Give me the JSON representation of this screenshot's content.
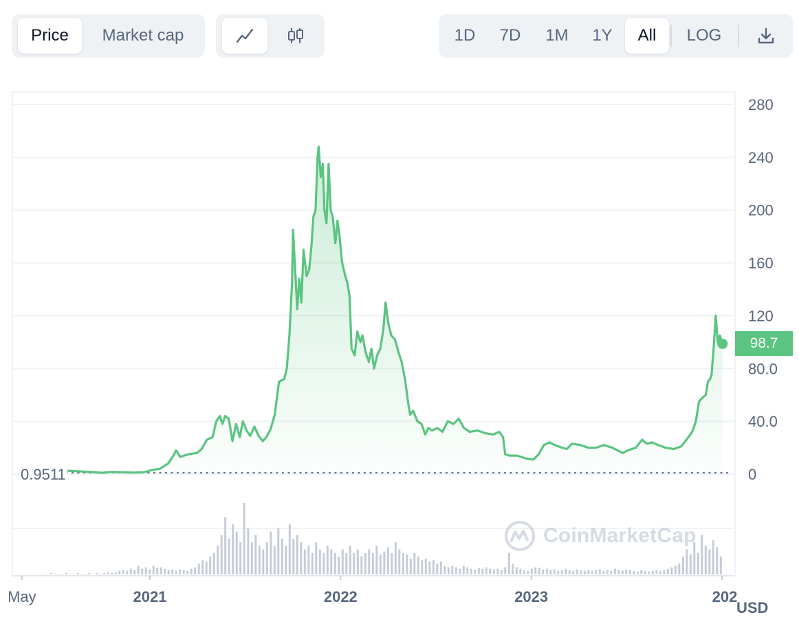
{
  "toolbar": {
    "metric_tabs": [
      {
        "label": "Price",
        "active": true
      },
      {
        "label": "Market cap",
        "active": false
      }
    ],
    "chart_types": [
      {
        "icon": "line-chart-icon",
        "active": true
      },
      {
        "icon": "candlestick-icon",
        "active": false
      }
    ],
    "ranges": [
      {
        "label": "1D",
        "active": false
      },
      {
        "label": "7D",
        "active": false
      },
      {
        "label": "1M",
        "active": false
      },
      {
        "label": "1Y",
        "active": false
      },
      {
        "label": "All",
        "active": true
      }
    ],
    "log_label": "LOG",
    "download_icon": "download-icon"
  },
  "watermark": "CoinMarketCap",
  "current_price_label": "98.7",
  "first_price_label": "0.9511",
  "currency": "USD",
  "colors": {
    "line": "#5ac480",
    "fill": "#5ac480",
    "volume": "#c6ccd6",
    "grid": "#eff2f5",
    "text": "#58667e"
  },
  "chart_data": {
    "type": "area",
    "title": "",
    "xlabel": "",
    "ylabel": "",
    "ylim": [
      0,
      280
    ],
    "yticks": [
      0,
      40,
      80,
      120,
      160,
      200,
      240,
      280
    ],
    "ytick_labels": [
      "0",
      "40.0",
      "80.0",
      "120",
      "160",
      "200",
      "240",
      "280"
    ],
    "xlim": [
      "2020-04-01",
      "2024-01-10"
    ],
    "xticks": [
      {
        "date": "2020-05-01",
        "label": "May"
      },
      {
        "date": "2021-01-01",
        "label": "2021"
      },
      {
        "date": "2022-01-01",
        "label": "2022"
      },
      {
        "date": "2023-01-01",
        "label": "2023"
      },
      {
        "date": "2024-01-01",
        "label": "202"
      }
    ],
    "grid": true,
    "baseline": 0.9511,
    "current_value": 98.7,
    "series": [
      {
        "points": [
          [
            "2020-06-10",
            1.0
          ],
          [
            "2020-06-25",
            2.2
          ],
          [
            "2020-07-10",
            3.5
          ],
          [
            "2020-07-25",
            2.6
          ],
          [
            "2020-08-15",
            2.2
          ],
          [
            "2020-09-10",
            1.6
          ],
          [
            "2020-10-01",
            1.0
          ],
          [
            "2020-10-20",
            1.6
          ],
          [
            "2020-11-10",
            1.4
          ],
          [
            "2020-12-01",
            1.1
          ],
          [
            "2020-12-20",
            1.4
          ],
          [
            "2021-01-05",
            3
          ],
          [
            "2021-01-20",
            4
          ],
          [
            "2021-02-05",
            8
          ],
          [
            "2021-02-15",
            14
          ],
          [
            "2021-02-20",
            18
          ],
          [
            "2021-02-28",
            13
          ],
          [
            "2021-03-15",
            15
          ],
          [
            "2021-04-01",
            16
          ],
          [
            "2021-04-10",
            19
          ],
          [
            "2021-04-20",
            26
          ],
          [
            "2021-05-01",
            28
          ],
          [
            "2021-05-08",
            40
          ],
          [
            "2021-05-15",
            44
          ],
          [
            "2021-05-20",
            38
          ],
          [
            "2021-05-25",
            44
          ],
          [
            "2021-06-01",
            42
          ],
          [
            "2021-06-08",
            25
          ],
          [
            "2021-06-15",
            38
          ],
          [
            "2021-06-22",
            28
          ],
          [
            "2021-06-28",
            40
          ],
          [
            "2021-07-05",
            33
          ],
          [
            "2021-07-12",
            29
          ],
          [
            "2021-07-20",
            36
          ],
          [
            "2021-07-28",
            29
          ],
          [
            "2021-08-05",
            25
          ],
          [
            "2021-08-12",
            28
          ],
          [
            "2021-08-20",
            34
          ],
          [
            "2021-08-28",
            45
          ],
          [
            "2021-09-05",
            70
          ],
          [
            "2021-09-15",
            72
          ],
          [
            "2021-09-20",
            80
          ],
          [
            "2021-09-25",
            105
          ],
          [
            "2021-09-30",
            145
          ],
          [
            "2021-10-02",
            185
          ],
          [
            "2021-10-06",
            155
          ],
          [
            "2021-10-10",
            125
          ],
          [
            "2021-10-14",
            148
          ],
          [
            "2021-10-18",
            130
          ],
          [
            "2021-10-22",
            170
          ],
          [
            "2021-10-28",
            150
          ],
          [
            "2021-11-02",
            155
          ],
          [
            "2021-11-06",
            172
          ],
          [
            "2021-11-10",
            195
          ],
          [
            "2021-11-14",
            200
          ],
          [
            "2021-11-18",
            240
          ],
          [
            "2021-11-20",
            248
          ],
          [
            "2021-11-24",
            225
          ],
          [
            "2021-11-28",
            235
          ],
          [
            "2021-12-01",
            200
          ],
          [
            "2021-12-05",
            190
          ],
          [
            "2021-12-09",
            235
          ],
          [
            "2021-12-13",
            200
          ],
          [
            "2021-12-17",
            195
          ],
          [
            "2021-12-22",
            175
          ],
          [
            "2021-12-26",
            192
          ],
          [
            "2021-12-30",
            180
          ],
          [
            "2022-01-04",
            160
          ],
          [
            "2022-01-10",
            150
          ],
          [
            "2022-01-14",
            145
          ],
          [
            "2022-01-18",
            135
          ],
          [
            "2022-01-22",
            95
          ],
          [
            "2022-01-28",
            90
          ],
          [
            "2022-02-02",
            108
          ],
          [
            "2022-02-08",
            100
          ],
          [
            "2022-02-12",
            105
          ],
          [
            "2022-02-18",
            92
          ],
          [
            "2022-02-24",
            85
          ],
          [
            "2022-03-01",
            95
          ],
          [
            "2022-03-06",
            80
          ],
          [
            "2022-03-12",
            90
          ],
          [
            "2022-03-18",
            95
          ],
          [
            "2022-03-24",
            110
          ],
          [
            "2022-03-28",
            130
          ],
          [
            "2022-04-02",
            115
          ],
          [
            "2022-04-08",
            105
          ],
          [
            "2022-04-15",
            102
          ],
          [
            "2022-04-22",
            92
          ],
          [
            "2022-04-28",
            85
          ],
          [
            "2022-05-05",
            70
          ],
          [
            "2022-05-10",
            55
          ],
          [
            "2022-05-14",
            45
          ],
          [
            "2022-05-20",
            48
          ],
          [
            "2022-05-28",
            40
          ],
          [
            "2022-06-05",
            38
          ],
          [
            "2022-06-12",
            30
          ],
          [
            "2022-06-18",
            35
          ],
          [
            "2022-06-25",
            33
          ],
          [
            "2022-07-05",
            35
          ],
          [
            "2022-07-15",
            32
          ],
          [
            "2022-07-25",
            40
          ],
          [
            "2022-08-05",
            38
          ],
          [
            "2022-08-15",
            42
          ],
          [
            "2022-08-25",
            35
          ],
          [
            "2022-09-05",
            32
          ],
          [
            "2022-09-20",
            33
          ],
          [
            "2022-10-05",
            31
          ],
          [
            "2022-10-20",
            30
          ],
          [
            "2022-11-01",
            32
          ],
          [
            "2022-11-08",
            28
          ],
          [
            "2022-11-12",
            15
          ],
          [
            "2022-11-20",
            14
          ],
          [
            "2022-12-05",
            14
          ],
          [
            "2022-12-20",
            12
          ],
          [
            "2023-01-05",
            11
          ],
          [
            "2023-01-15",
            15
          ],
          [
            "2023-01-25",
            22
          ],
          [
            "2023-02-05",
            24
          ],
          [
            "2023-02-15",
            22
          ],
          [
            "2023-03-01",
            20
          ],
          [
            "2023-03-10",
            19
          ],
          [
            "2023-03-20",
            23
          ],
          [
            "2023-04-05",
            22
          ],
          [
            "2023-04-20",
            20
          ],
          [
            "2023-05-05",
            20
          ],
          [
            "2023-05-20",
            22
          ],
          [
            "2023-06-05",
            20
          ],
          [
            "2023-06-15",
            18
          ],
          [
            "2023-06-25",
            16
          ],
          [
            "2023-07-05",
            18
          ],
          [
            "2023-07-20",
            20
          ],
          [
            "2023-08-01",
            26
          ],
          [
            "2023-08-10",
            23
          ],
          [
            "2023-08-20",
            24
          ],
          [
            "2023-09-01",
            22
          ],
          [
            "2023-09-15",
            20
          ],
          [
            "2023-10-01",
            19
          ],
          [
            "2023-10-15",
            21
          ],
          [
            "2023-10-25",
            26
          ],
          [
            "2023-11-05",
            32
          ],
          [
            "2023-11-12",
            40
          ],
          [
            "2023-11-18",
            55
          ],
          [
            "2023-11-25",
            58
          ],
          [
            "2023-12-01",
            60
          ],
          [
            "2023-12-05",
            70
          ],
          [
            "2023-12-09",
            72
          ],
          [
            "2023-12-12",
            75
          ],
          [
            "2023-12-16",
            95
          ],
          [
            "2023-12-20",
            120
          ],
          [
            "2023-12-24",
            100
          ],
          [
            "2023-12-28",
            105
          ],
          [
            "2024-01-02",
            98.7
          ]
        ]
      }
    ],
    "volume": {
      "scale": "relative",
      "max": 1.0,
      "values": [
        0.01,
        0.01,
        0.02,
        0.01,
        0.01,
        0.01,
        0.02,
        0.01,
        0.01,
        0.02,
        0.01,
        0.01,
        0.02,
        0.01,
        0.02,
        0.01,
        0.02,
        0.03,
        0.02,
        0.03,
        0.05,
        0.06,
        0.05,
        0.08,
        0.06,
        0.12,
        0.08,
        0.1,
        0.07,
        0.12,
        0.09,
        0.1,
        0.08,
        0.06,
        0.07,
        0.05,
        0.07,
        0.06,
        0.05,
        0.08,
        0.1,
        0.15,
        0.2,
        0.18,
        0.25,
        0.3,
        0.4,
        0.55,
        0.8,
        0.5,
        0.7,
        0.6,
        0.45,
        1.0,
        0.65,
        0.45,
        0.55,
        0.4,
        0.35,
        0.45,
        0.6,
        0.4,
        0.65,
        0.5,
        0.4,
        0.7,
        0.5,
        0.55,
        0.45,
        0.35,
        0.4,
        0.3,
        0.45,
        0.35,
        0.3,
        0.4,
        0.35,
        0.3,
        0.25,
        0.35,
        0.3,
        0.4,
        0.3,
        0.35,
        0.25,
        0.3,
        0.35,
        0.3,
        0.4,
        0.28,
        0.32,
        0.38,
        0.3,
        0.45,
        0.35,
        0.3,
        0.28,
        0.22,
        0.3,
        0.25,
        0.2,
        0.22,
        0.18,
        0.2,
        0.15,
        0.18,
        0.12,
        0.1,
        0.12,
        0.1,
        0.08,
        0.12,
        0.1,
        0.08,
        0.07,
        0.09,
        0.08,
        0.1,
        0.08,
        0.07,
        0.08,
        0.06,
        0.1,
        0.3,
        0.15,
        0.1,
        0.08,
        0.06,
        0.05,
        0.08,
        0.1,
        0.09,
        0.07,
        0.08,
        0.06,
        0.07,
        0.05,
        0.06,
        0.08,
        0.06,
        0.05,
        0.07,
        0.06,
        0.05,
        0.06,
        0.05,
        0.06,
        0.07,
        0.05,
        0.06,
        0.05,
        0.08,
        0.06,
        0.05,
        0.07,
        0.06,
        0.05,
        0.04,
        0.06,
        0.05,
        0.04,
        0.05,
        0.06,
        0.05,
        0.06,
        0.08,
        0.1,
        0.12,
        0.15,
        0.25,
        0.35,
        0.28,
        0.45,
        0.3,
        0.55,
        0.4,
        0.35,
        0.48,
        0.38,
        0.25
      ]
    }
  }
}
